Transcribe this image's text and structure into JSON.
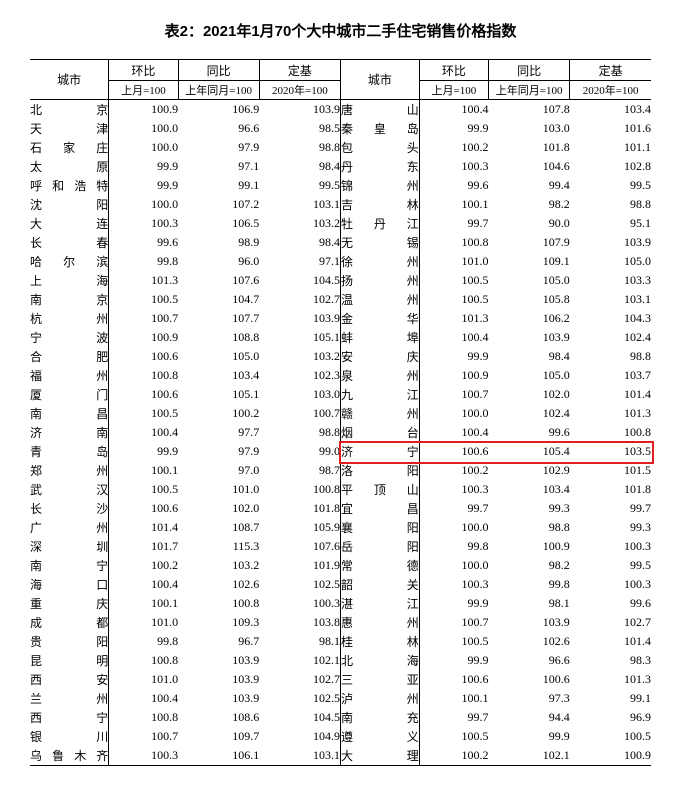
{
  "title": "表2：2021年1月70个大中城市二手住宅销售价格指数",
  "headers": {
    "city": "城市",
    "mom": "环比",
    "yoy": "同比",
    "base": "定基",
    "mom_sub": "上月=100",
    "yoy_sub": "上年同月=100",
    "base_sub": "2020年=100"
  },
  "highlight": {
    "row_index": 18,
    "side": "right"
  },
  "left": [
    {
      "c": "北京",
      "m": "100.9",
      "y": "106.9",
      "b": "103.9"
    },
    {
      "c": "天津",
      "m": "100.0",
      "y": "96.6",
      "b": "98.5"
    },
    {
      "c": "石家庄",
      "m": "100.0",
      "y": "97.9",
      "b": "98.8"
    },
    {
      "c": "太原",
      "m": "99.9",
      "y": "97.1",
      "b": "98.4"
    },
    {
      "c": "呼和浩特",
      "m": "99.9",
      "y": "99.1",
      "b": "99.5"
    },
    {
      "c": "沈阳",
      "m": "100.0",
      "y": "107.2",
      "b": "103.1"
    },
    {
      "c": "大连",
      "m": "100.3",
      "y": "106.5",
      "b": "103.2"
    },
    {
      "c": "长春",
      "m": "99.6",
      "y": "98.9",
      "b": "98.4"
    },
    {
      "c": "哈尔滨",
      "m": "99.8",
      "y": "96.0",
      "b": "97.1"
    },
    {
      "c": "上海",
      "m": "101.3",
      "y": "107.6",
      "b": "104.5"
    },
    {
      "c": "南京",
      "m": "100.5",
      "y": "104.7",
      "b": "102.7"
    },
    {
      "c": "杭州",
      "m": "100.7",
      "y": "107.7",
      "b": "103.9"
    },
    {
      "c": "宁波",
      "m": "100.9",
      "y": "108.8",
      "b": "105.1"
    },
    {
      "c": "合肥",
      "m": "100.6",
      "y": "105.0",
      "b": "103.2"
    },
    {
      "c": "福州",
      "m": "100.8",
      "y": "103.4",
      "b": "102.3"
    },
    {
      "c": "厦门",
      "m": "100.6",
      "y": "105.1",
      "b": "103.0"
    },
    {
      "c": "南昌",
      "m": "100.5",
      "y": "100.2",
      "b": "100.7"
    },
    {
      "c": "济南",
      "m": "100.4",
      "y": "97.7",
      "b": "98.8"
    },
    {
      "c": "青岛",
      "m": "99.9",
      "y": "97.9",
      "b": "99.0"
    },
    {
      "c": "郑州",
      "m": "100.1",
      "y": "97.0",
      "b": "98.7"
    },
    {
      "c": "武汉",
      "m": "100.5",
      "y": "101.0",
      "b": "100.8"
    },
    {
      "c": "长沙",
      "m": "100.6",
      "y": "102.0",
      "b": "101.8"
    },
    {
      "c": "广州",
      "m": "101.4",
      "y": "108.7",
      "b": "105.9"
    },
    {
      "c": "深圳",
      "m": "101.7",
      "y": "115.3",
      "b": "107.6"
    },
    {
      "c": "南宁",
      "m": "100.2",
      "y": "103.2",
      "b": "101.9"
    },
    {
      "c": "海口",
      "m": "100.4",
      "y": "102.6",
      "b": "102.5"
    },
    {
      "c": "重庆",
      "m": "100.1",
      "y": "100.8",
      "b": "100.3"
    },
    {
      "c": "成都",
      "m": "101.0",
      "y": "109.3",
      "b": "103.8"
    },
    {
      "c": "贵阳",
      "m": "99.8",
      "y": "96.7",
      "b": "98.1"
    },
    {
      "c": "昆明",
      "m": "100.8",
      "y": "103.9",
      "b": "102.1"
    },
    {
      "c": "西安",
      "m": "101.0",
      "y": "103.9",
      "b": "102.7"
    },
    {
      "c": "兰州",
      "m": "100.4",
      "y": "103.9",
      "b": "102.5"
    },
    {
      "c": "西宁",
      "m": "100.8",
      "y": "108.6",
      "b": "104.5"
    },
    {
      "c": "银川",
      "m": "100.7",
      "y": "109.7",
      "b": "104.9"
    },
    {
      "c": "乌鲁木齐",
      "m": "100.3",
      "y": "106.1",
      "b": "103.1"
    }
  ],
  "right": [
    {
      "c": "唐山",
      "m": "100.4",
      "y": "107.8",
      "b": "103.4"
    },
    {
      "c": "秦皇岛",
      "m": "99.9",
      "y": "103.0",
      "b": "101.6"
    },
    {
      "c": "包头",
      "m": "100.2",
      "y": "101.8",
      "b": "101.1"
    },
    {
      "c": "丹东",
      "m": "100.3",
      "y": "104.6",
      "b": "102.8"
    },
    {
      "c": "锦州",
      "m": "99.6",
      "y": "99.4",
      "b": "99.5"
    },
    {
      "c": "吉林",
      "m": "100.1",
      "y": "98.2",
      "b": "98.8"
    },
    {
      "c": "牡丹江",
      "m": "99.7",
      "y": "90.0",
      "b": "95.1"
    },
    {
      "c": "无锡",
      "m": "100.8",
      "y": "107.9",
      "b": "103.9"
    },
    {
      "c": "徐州",
      "m": "101.0",
      "y": "109.1",
      "b": "105.0"
    },
    {
      "c": "扬州",
      "m": "100.5",
      "y": "105.0",
      "b": "103.3"
    },
    {
      "c": "温州",
      "m": "100.5",
      "y": "105.8",
      "b": "103.1"
    },
    {
      "c": "金华",
      "m": "101.3",
      "y": "106.2",
      "b": "104.3"
    },
    {
      "c": "蚌埠",
      "m": "100.4",
      "y": "103.9",
      "b": "102.4"
    },
    {
      "c": "安庆",
      "m": "99.9",
      "y": "98.4",
      "b": "98.8"
    },
    {
      "c": "泉州",
      "m": "100.9",
      "y": "105.0",
      "b": "103.7"
    },
    {
      "c": "九江",
      "m": "100.7",
      "y": "102.0",
      "b": "101.4"
    },
    {
      "c": "赣州",
      "m": "100.0",
      "y": "102.4",
      "b": "101.3"
    },
    {
      "c": "烟台",
      "m": "100.4",
      "y": "99.6",
      "b": "100.8"
    },
    {
      "c": "济宁",
      "m": "100.6",
      "y": "105.4",
      "b": "103.5"
    },
    {
      "c": "洛阳",
      "m": "100.2",
      "y": "102.9",
      "b": "101.5"
    },
    {
      "c": "平顶山",
      "m": "100.3",
      "y": "103.4",
      "b": "101.8"
    },
    {
      "c": "宜昌",
      "m": "99.7",
      "y": "99.3",
      "b": "99.7"
    },
    {
      "c": "襄阳",
      "m": "100.0",
      "y": "98.8",
      "b": "99.3"
    },
    {
      "c": "岳阳",
      "m": "99.8",
      "y": "100.9",
      "b": "100.3"
    },
    {
      "c": "常德",
      "m": "100.0",
      "y": "98.2",
      "b": "99.5"
    },
    {
      "c": "韶关",
      "m": "100.3",
      "y": "99.8",
      "b": "100.3"
    },
    {
      "c": "湛江",
      "m": "99.9",
      "y": "98.1",
      "b": "99.6"
    },
    {
      "c": "惠州",
      "m": "100.7",
      "y": "103.9",
      "b": "102.7"
    },
    {
      "c": "桂林",
      "m": "100.5",
      "y": "102.6",
      "b": "101.4"
    },
    {
      "c": "北海",
      "m": "99.9",
      "y": "96.6",
      "b": "98.3"
    },
    {
      "c": "三亚",
      "m": "100.6",
      "y": "100.6",
      "b": "101.3"
    },
    {
      "c": "泸州",
      "m": "100.1",
      "y": "97.3",
      "b": "99.1"
    },
    {
      "c": "南充",
      "m": "99.7",
      "y": "94.4",
      "b": "96.9"
    },
    {
      "c": "遵义",
      "m": "100.5",
      "y": "99.9",
      "b": "100.5"
    },
    {
      "c": "大理",
      "m": "100.2",
      "y": "102.1",
      "b": "100.9"
    }
  ]
}
